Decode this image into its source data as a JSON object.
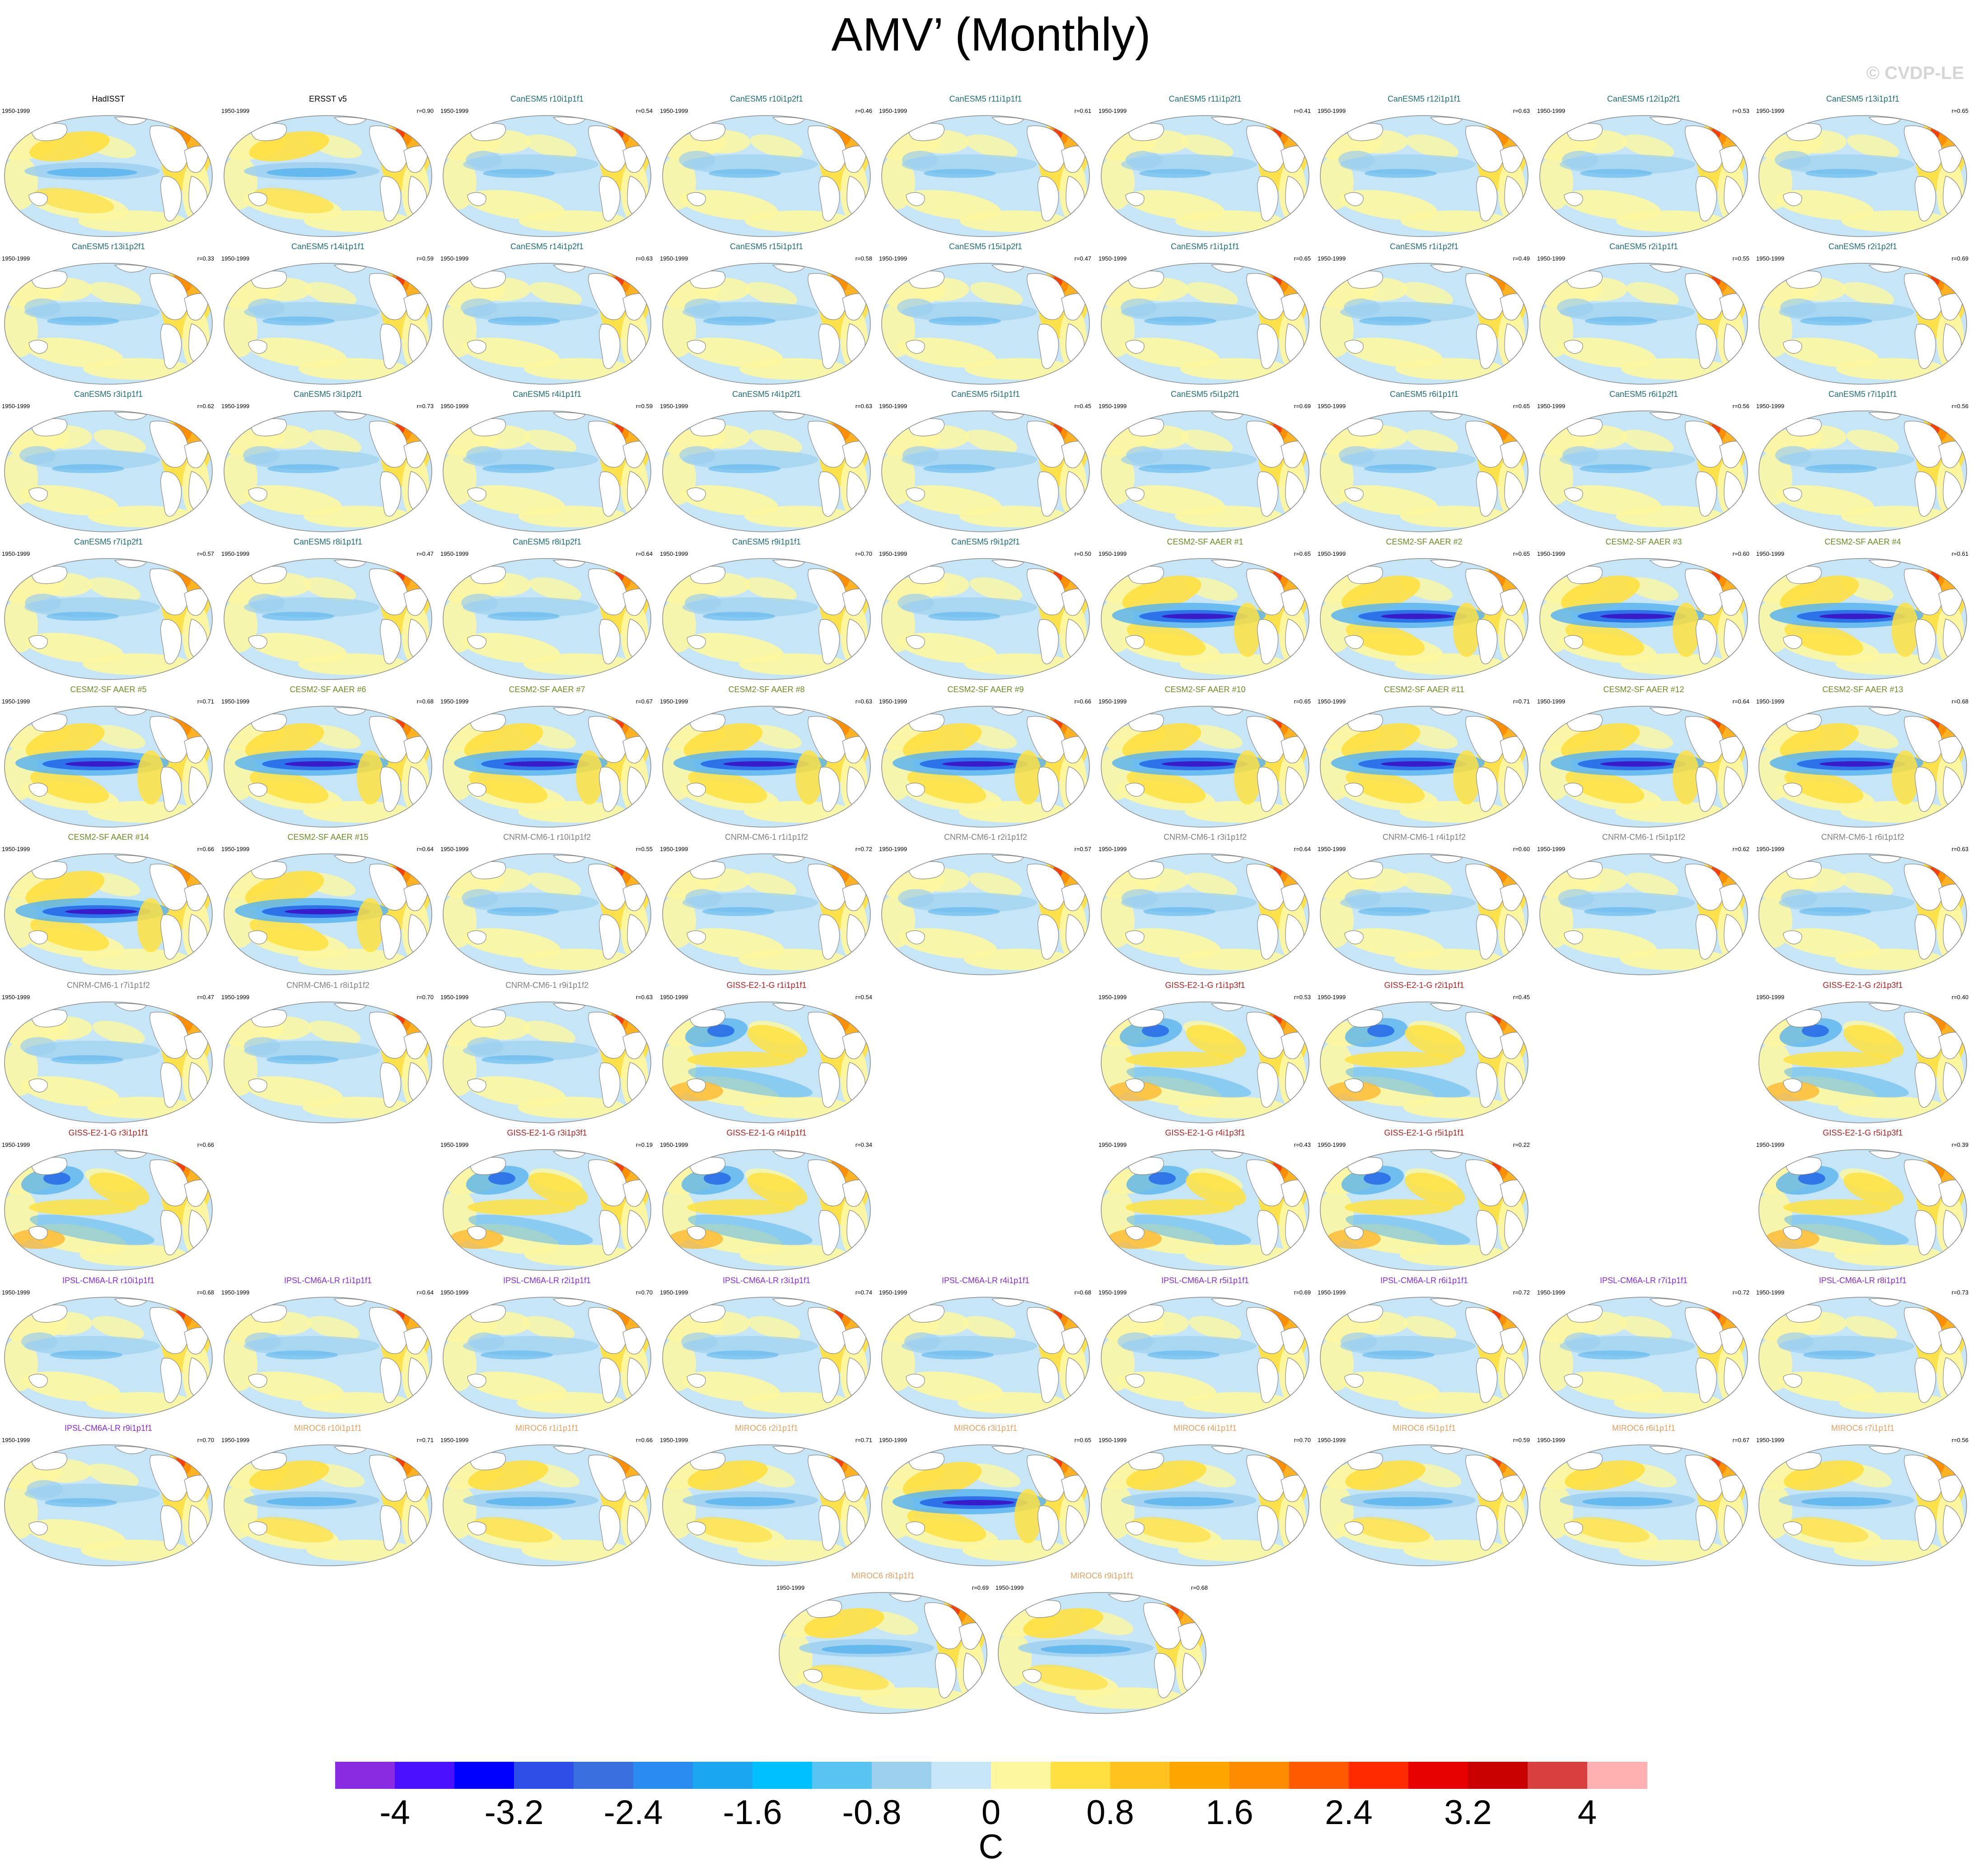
{
  "title": "AMV’ (Monthly)",
  "watermark": "© CVDP-LE",
  "colorbar": {
    "colors": [
      "#8a2be2",
      "#4b0fff",
      "#0000ff",
      "#2f4ee8",
      "#3a6fe0",
      "#2a8cf0",
      "#1aa6f0",
      "#00bfff",
      "#5ac4f0",
      "#9ccfee",
      "#c6e6f7",
      "#fdf7a0",
      "#ffe040",
      "#ffc21f",
      "#ffa500",
      "#ff8c00",
      "#ff5a00",
      "#ff2a00",
      "#e60000",
      "#c80000",
      "#d84040",
      "#ffb0b0"
    ],
    "tick_labels": [
      "-4",
      "-3.2",
      "-2.4",
      "-1.6",
      "-0.8",
      "0",
      "0.8",
      "1.6",
      "2.4",
      "3.2",
      "4"
    ],
    "units": "C"
  },
  "panel_colors": {
    "obs": "#000000",
    "CanESM5": "#1f6f7a",
    "CESM2-SF AAER": "#6b8e23",
    "CNRM-CM6-1": "#808080",
    "GISS-E2-1-G": "#b22222",
    "IPSL-CM6A-LR": "#8a2be2",
    "MIROC6": "#e6a060"
  },
  "rows": [
    [
      {
        "title": "HadISST",
        "period": "1950-1999",
        "r": "",
        "group": "obs",
        "style": 3
      },
      {
        "title": "ERSST v5",
        "period": "1950-1999",
        "r": "r=0.90",
        "group": "obs",
        "style": 3
      },
      {
        "title": "CanESM5 r10i1p1f1",
        "period": "1950-1999",
        "r": "r=0.54",
        "group": "CanESM5",
        "style": 1
      },
      {
        "title": "CanESM5 r10i1p2f1",
        "period": "1950-1999",
        "r": "r=0.46",
        "group": "CanESM5",
        "style": 1
      },
      {
        "title": "CanESM5 r11i1p1f1",
        "period": "1950-1999",
        "r": "r=0.61",
        "group": "CanESM5",
        "style": 1
      },
      {
        "title": "CanESM5 r11i1p2f1",
        "period": "1950-1999",
        "r": "r=0.41",
        "group": "CanESM5",
        "style": 1
      },
      {
        "title": "CanESM5 r12i1p1f1",
        "period": "1950-1999",
        "r": "r=0.63",
        "group": "CanESM5",
        "style": 1
      },
      {
        "title": "CanESM5 r12i1p2f1",
        "period": "1950-1999",
        "r": "r=0.53",
        "group": "CanESM5",
        "style": 1
      },
      {
        "title": "CanESM5 r13i1p1f1",
        "period": "1950-1999",
        "r": "r=0.65",
        "group": "CanESM5",
        "style": 1
      }
    ],
    [
      {
        "title": "CanESM5 r13i1p2f1",
        "period": "1950-1999",
        "r": "r=0.33",
        "group": "CanESM5",
        "style": 1
      },
      {
        "title": "CanESM5 r14i1p1f1",
        "period": "1950-1999",
        "r": "r=0.59",
        "group": "CanESM5",
        "style": 1
      },
      {
        "title": "CanESM5 r14i1p2f1",
        "period": "1950-1999",
        "r": "r=0.63",
        "group": "CanESM5",
        "style": 1
      },
      {
        "title": "CanESM5 r15i1p1f1",
        "period": "1950-1999",
        "r": "r=0.58",
        "group": "CanESM5",
        "style": 1
      },
      {
        "title": "CanESM5 r15i1p2f1",
        "period": "1950-1999",
        "r": "r=0.47",
        "group": "CanESM5",
        "style": 1
      },
      {
        "title": "CanESM5 r1i1p1f1",
        "period": "1950-1999",
        "r": "r=0.65",
        "group": "CanESM5",
        "style": 1
      },
      {
        "title": "CanESM5 r1i1p2f1",
        "period": "1950-1999",
        "r": "r=0.49",
        "group": "CanESM5",
        "style": 1
      },
      {
        "title": "CanESM5 r2i1p1f1",
        "period": "1950-1999",
        "r": "r=0.55",
        "group": "CanESM5",
        "style": 1
      },
      {
        "title": "CanESM5 r2i1p2f1",
        "period": "1950-1999",
        "r": "r=0.69",
        "group": "CanESM5",
        "style": 1
      }
    ],
    [
      {
        "title": "CanESM5 r3i1p1f1",
        "period": "1950-1999",
        "r": "r=0.62",
        "group": "CanESM5",
        "style": 1
      },
      {
        "title": "CanESM5 r3i1p2f1",
        "period": "1950-1999",
        "r": "r=0.73",
        "group": "CanESM5",
        "style": 1
      },
      {
        "title": "CanESM5 r4i1p1f1",
        "period": "1950-1999",
        "r": "r=0.59",
        "group": "CanESM5",
        "style": 1
      },
      {
        "title": "CanESM5 r4i1p2f1",
        "period": "1950-1999",
        "r": "r=0.63",
        "group": "CanESM5",
        "style": 1
      },
      {
        "title": "CanESM5 r5i1p1f1",
        "period": "1950-1999",
        "r": "r=0.45",
        "group": "CanESM5",
        "style": 1
      },
      {
        "title": "CanESM5 r5i1p2f1",
        "period": "1950-1999",
        "r": "r=0.69",
        "group": "CanESM5",
        "style": 1
      },
      {
        "title": "CanESM5 r6i1p1f1",
        "period": "1950-1999",
        "r": "r=0.65",
        "group": "CanESM5",
        "style": 1
      },
      {
        "title": "CanESM5 r6i1p2f1",
        "period": "1950-1999",
        "r": "r=0.56",
        "group": "CanESM5",
        "style": 1
      },
      {
        "title": "CanESM5 r7i1p1f1",
        "period": "1950-1999",
        "r": "r=0.56",
        "group": "CanESM5",
        "style": 1
      }
    ],
    [
      {
        "title": "CanESM5 r7i1p2f1",
        "period": "1950-1999",
        "r": "r=0.57",
        "group": "CanESM5",
        "style": 1
      },
      {
        "title": "CanESM5 r8i1p1f1",
        "period": "1950-1999",
        "r": "r=0.47",
        "group": "CanESM5",
        "style": 1
      },
      {
        "title": "CanESM5 r8i1p2f1",
        "period": "1950-1999",
        "r": "r=0.64",
        "group": "CanESM5",
        "style": 1
      },
      {
        "title": "CanESM5 r9i1p1f1",
        "period": "1950-1999",
        "r": "r=0.70",
        "group": "CanESM5",
        "style": 1
      },
      {
        "title": "CanESM5 r9i1p2f1",
        "period": "1950-1999",
        "r": "r=0.50",
        "group": "CanESM5",
        "style": 1
      },
      {
        "title": "CESM2-SF AAER #1",
        "period": "1950-1999",
        "r": "r=0.65",
        "group": "CESM2-SF AAER",
        "style": 2
      },
      {
        "title": "CESM2-SF AAER #2",
        "period": "1950-1999",
        "r": "r=0.65",
        "group": "CESM2-SF AAER",
        "style": 2
      },
      {
        "title": "CESM2-SF AAER #3",
        "period": "1950-1999",
        "r": "r=0.60",
        "group": "CESM2-SF AAER",
        "style": 2
      },
      {
        "title": "CESM2-SF AAER #4",
        "period": "1950-1999",
        "r": "r=0.61",
        "group": "CESM2-SF AAER",
        "style": 2
      }
    ],
    [
      {
        "title": "CESM2-SF AAER #5",
        "period": "1950-1999",
        "r": "r=0.71",
        "group": "CESM2-SF AAER",
        "style": 2
      },
      {
        "title": "CESM2-SF AAER #6",
        "period": "1950-1999",
        "r": "r=0.68",
        "group": "CESM2-SF AAER",
        "style": 2
      },
      {
        "title": "CESM2-SF AAER #7",
        "period": "1950-1999",
        "r": "r=0.67",
        "group": "CESM2-SF AAER",
        "style": 2
      },
      {
        "title": "CESM2-SF AAER #8",
        "period": "1950-1999",
        "r": "r=0.63",
        "group": "CESM2-SF AAER",
        "style": 2
      },
      {
        "title": "CESM2-SF AAER #9",
        "period": "1950-1999",
        "r": "r=0.66",
        "group": "CESM2-SF AAER",
        "style": 2
      },
      {
        "title": "CESM2-SF AAER #10",
        "period": "1950-1999",
        "r": "r=0.65",
        "group": "CESM2-SF AAER",
        "style": 2
      },
      {
        "title": "CESM2-SF AAER #11",
        "period": "1950-1999",
        "r": "r=0.71",
        "group": "CESM2-SF AAER",
        "style": 2
      },
      {
        "title": "CESM2-SF AAER #12",
        "period": "1950-1999",
        "r": "r=0.64",
        "group": "CESM2-SF AAER",
        "style": 2
      },
      {
        "title": "CESM2-SF AAER #13",
        "period": "1950-1999",
        "r": "r=0.68",
        "group": "CESM2-SF AAER",
        "style": 2
      }
    ],
    [
      {
        "title": "CESM2-SF AAER #14",
        "period": "1950-1999",
        "r": "r=0.66",
        "group": "CESM2-SF AAER",
        "style": 2
      },
      {
        "title": "CESM2-SF AAER #15",
        "period": "1950-1999",
        "r": "r=0.64",
        "group": "CESM2-SF AAER",
        "style": 2
      },
      {
        "title": "CNRM-CM6-1 r10i1p1f2",
        "period": "1950-1999",
        "r": "r=0.55",
        "group": "CNRM-CM6-1",
        "style": 1
      },
      {
        "title": "CNRM-CM6-1 r1i1p1f2",
        "period": "1950-1999",
        "r": "r=0.72",
        "group": "CNRM-CM6-1",
        "style": 1
      },
      {
        "title": "CNRM-CM6-1 r2i1p1f2",
        "period": "1950-1999",
        "r": "r=0.57",
        "group": "CNRM-CM6-1",
        "style": 1
      },
      {
        "title": "CNRM-CM6-1 r3i1p1f2",
        "period": "1950-1999",
        "r": "r=0.64",
        "group": "CNRM-CM6-1",
        "style": 1
      },
      {
        "title": "CNRM-CM6-1 r4i1p1f2",
        "period": "1950-1999",
        "r": "r=0.60",
        "group": "CNRM-CM6-1",
        "style": 1
      },
      {
        "title": "CNRM-CM6-1 r5i1p1f2",
        "period": "1950-1999",
        "r": "r=0.62",
        "group": "CNRM-CM6-1",
        "style": 1
      },
      {
        "title": "CNRM-CM6-1 r6i1p1f2",
        "period": "1950-1999",
        "r": "r=0.63",
        "group": "CNRM-CM6-1",
        "style": 1
      }
    ],
    [
      {
        "title": "CNRM-CM6-1 r7i1p1f2",
        "period": "1950-1999",
        "r": "r=0.47",
        "group": "CNRM-CM6-1",
        "style": 1
      },
      {
        "title": "CNRM-CM6-1 r8i1p1f2",
        "period": "1950-1999",
        "r": "r=0.70",
        "group": "CNRM-CM6-1",
        "style": 1
      },
      {
        "title": "CNRM-CM6-1 r9i1p1f2",
        "period": "1950-1999",
        "r": "r=0.63",
        "group": "CNRM-CM6-1",
        "style": 1
      },
      {
        "title": "GISS-E2-1-G r1i1p1f1",
        "period": "1950-1999",
        "r": "r=0.54",
        "group": "GISS-E2-1-G",
        "style": 4
      },
      null,
      {
        "title": "GISS-E2-1-G r1i1p3f1",
        "period": "1950-1999",
        "r": "r=0.53",
        "group": "GISS-E2-1-G",
        "style": 4
      },
      {
        "title": "GISS-E2-1-G r2i1p1f1",
        "period": "1950-1999",
        "r": "r=0.45",
        "group": "GISS-E2-1-G",
        "style": 4
      },
      null,
      {
        "title": "GISS-E2-1-G r2i1p3f1",
        "period": "1950-1999",
        "r": "r=0.40",
        "group": "GISS-E2-1-G",
        "style": 4
      }
    ],
    [
      {
        "title": "GISS-E2-1-G r3i1p1f1",
        "period": "1950-1999",
        "r": "r=0.66",
        "group": "GISS-E2-1-G",
        "style": 4
      },
      null,
      {
        "title": "GISS-E2-1-G r3i1p3f1",
        "period": "1950-1999",
        "r": "r=0.19",
        "group": "GISS-E2-1-G",
        "style": 4
      },
      {
        "title": "GISS-E2-1-G r4i1p1f1",
        "period": "1950-1999",
        "r": "r=0.34",
        "group": "GISS-E2-1-G",
        "style": 4
      },
      null,
      {
        "title": "GISS-E2-1-G r4i1p3f1",
        "period": "1950-1999",
        "r": "r=0.43",
        "group": "GISS-E2-1-G",
        "style": 4
      },
      {
        "title": "GISS-E2-1-G r5i1p1f1",
        "period": "1950-1999",
        "r": "r=0.22",
        "group": "GISS-E2-1-G",
        "style": 4
      },
      null,
      {
        "title": "GISS-E2-1-G r5i1p3f1",
        "period": "1950-1999",
        "r": "r=0.39",
        "group": "GISS-E2-1-G",
        "style": 4
      }
    ],
    [
      {
        "title": "IPSL-CM6A-LR r10i1p1f1",
        "period": "1950-1999",
        "r": "r=0.68",
        "group": "IPSL-CM6A-LR",
        "style": 1
      },
      {
        "title": "IPSL-CM6A-LR r1i1p1f1",
        "period": "1950-1999",
        "r": "r=0.64",
        "group": "IPSL-CM6A-LR",
        "style": 1
      },
      {
        "title": "IPSL-CM6A-LR r2i1p1f1",
        "period": "1950-1999",
        "r": "r=0.70",
        "group": "IPSL-CM6A-LR",
        "style": 1
      },
      {
        "title": "IPSL-CM6A-LR r3i1p1f1",
        "period": "1950-1999",
        "r": "r=0.74",
        "group": "IPSL-CM6A-LR",
        "style": 1
      },
      {
        "title": "IPSL-CM6A-LR r4i1p1f1",
        "period": "1950-1999",
        "r": "r=0.68",
        "group": "IPSL-CM6A-LR",
        "style": 1
      },
      {
        "title": "IPSL-CM6A-LR r5i1p1f1",
        "period": "1950-1999",
        "r": "r=0.69",
        "group": "IPSL-CM6A-LR",
        "style": 1
      },
      {
        "title": "IPSL-CM6A-LR r6i1p1f1",
        "period": "1950-1999",
        "r": "r=0.72",
        "group": "IPSL-CM6A-LR",
        "style": 1
      },
      {
        "title": "IPSL-CM6A-LR r7i1p1f1",
        "period": "1950-1999",
        "r": "r=0.72",
        "group": "IPSL-CM6A-LR",
        "style": 1
      },
      {
        "title": "IPSL-CM6A-LR r8i1p1f1",
        "period": "1950-1999",
        "r": "r=0.73",
        "group": "IPSL-CM6A-LR",
        "style": 1
      }
    ],
    [
      {
        "title": "IPSL-CM6A-LR r9i1p1f1",
        "period": "1950-1999",
        "r": "r=0.70",
        "group": "IPSL-CM6A-LR",
        "style": 1
      },
      {
        "title": "MIROC6 r10i1p1f1",
        "period": "1950-1999",
        "r": "r=0.71",
        "group": "MIROC6",
        "style": 3
      },
      {
        "title": "MIROC6 r1i1p1f1",
        "period": "1950-1999",
        "r": "r=0.66",
        "group": "MIROC6",
        "style": 3
      },
      {
        "title": "MIROC6 r2i1p1f1",
        "period": "1950-1999",
        "r": "r=0.71",
        "group": "MIROC6",
        "style": 3
      },
      {
        "title": "MIROC6 r3i1p1f1",
        "period": "1950-1999",
        "r": "r=0.65",
        "group": "MIROC6",
        "style": 2
      },
      {
        "title": "MIROC6 r4i1p1f1",
        "period": "1950-1999",
        "r": "r=0.70",
        "group": "MIROC6",
        "style": 3
      },
      {
        "title": "MIROC6 r5i1p1f1",
        "period": "1950-1999",
        "r": "r=0.59",
        "group": "MIROC6",
        "style": 3
      },
      {
        "title": "MIROC6 r6i1p1f1",
        "period": "1950-1999",
        "r": "r=0.67",
        "group": "MIROC6",
        "style": 3
      },
      {
        "title": "MIROC6 r7i1p1f1",
        "period": "1950-1999",
        "r": "r=0.56",
        "group": "MIROC6",
        "style": 3
      }
    ],
    [
      {
        "title": "MIROC6 r8i1p1f1",
        "period": "1950-1999",
        "r": "r=0.69",
        "group": "MIROC6",
        "style": 3
      },
      {
        "title": "MIROC6 r9i1p1f1",
        "period": "1950-1999",
        "r": "r=0.68",
        "group": "MIROC6",
        "style": 3
      }
    ]
  ]
}
